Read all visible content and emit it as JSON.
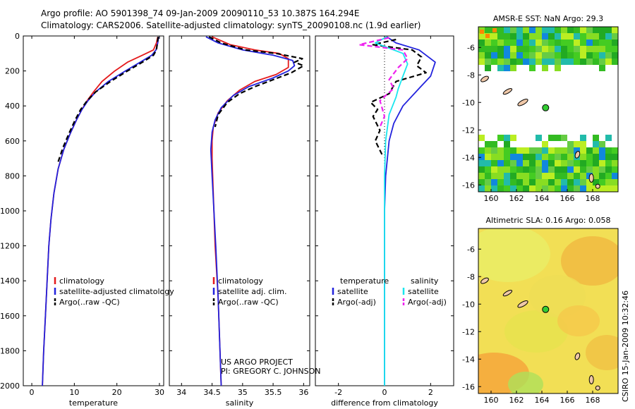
{
  "header": {
    "title_line1": "Argo profile: AO 5901398_74 09-Jan-2009 20090110_53 10.387S 164.294E",
    "title_line2": "Climatology: CARS2006. Satellite-adjusted climatology: synTS_20090108.nc (1.9d earlier)"
  },
  "sidebar_stamp": "CSIRO 15-Jan-2009 10:32:46",
  "project_note": {
    "line1": "US ARGO PROJECT",
    "line2": "PI: GREGORY C. JOHNSON"
  },
  "colors": {
    "climatology": "#e41a1c",
    "satellite": "#2222dd",
    "argo": "#000000",
    "sat_salinity": "#19e6ee",
    "argo_salinity_adj": "#ee22ee",
    "station": "#33cc33"
  },
  "chart_data": [
    {
      "type": "line",
      "xlabel": "temperature",
      "ylim": [
        2000,
        0
      ],
      "xlim": [
        -2,
        31
      ],
      "xticks": [
        0,
        10,
        20,
        30
      ],
      "yticks": [
        0,
        200,
        400,
        600,
        800,
        1000,
        1200,
        1400,
        1600,
        1800,
        2000
      ],
      "legend_location": "lower-left",
      "series": [
        {
          "name": "climatology",
          "color": "#e41a1c",
          "style": "solid",
          "points": [
            [
              29.6,
              5
            ],
            [
              29.3,
              40
            ],
            [
              28.6,
              80
            ],
            [
              26,
              110
            ],
            [
              22.5,
              150
            ],
            [
              19.5,
              200
            ],
            [
              16.5,
              260
            ],
            [
              14.5,
              320
            ],
            [
              13,
              370
            ],
            [
              11.8,
              420
            ],
            [
              10.5,
              480
            ],
            [
              9,
              560
            ],
            [
              7.5,
              650
            ],
            [
              6.2,
              760
            ],
            [
              5.2,
              900
            ],
            [
              4.5,
              1050
            ],
            [
              4,
              1200
            ],
            [
              3.6,
              1400
            ],
            [
              3.2,
              1600
            ],
            [
              2.8,
              1800
            ],
            [
              2.5,
              2000
            ]
          ]
        },
        {
          "name": "satellite-adjusted climatology",
          "color": "#2222dd",
          "style": "solid",
          "points": [
            [
              29.8,
              5
            ],
            [
              29.6,
              40
            ],
            [
              29.2,
              80
            ],
            [
              28.2,
              110
            ],
            [
              25.5,
              150
            ],
            [
              22,
              200
            ],
            [
              18,
              260
            ],
            [
              15,
              320
            ],
            [
              13.2,
              370
            ],
            [
              11.8,
              420
            ],
            [
              10.5,
              480
            ],
            [
              9,
              560
            ],
            [
              7.5,
              650
            ],
            [
              6.2,
              760
            ],
            [
              5.2,
              900
            ],
            [
              4.5,
              1050
            ],
            [
              4,
              1200
            ],
            [
              3.6,
              1400
            ],
            [
              3.2,
              1600
            ],
            [
              2.8,
              1800
            ],
            [
              2.5,
              2000
            ]
          ]
        },
        {
          "name": "Argo(..raw -QC)",
          "color": "#000000",
          "style": "dashed",
          "points": [
            [
              29.7,
              5
            ],
            [
              29.5,
              40
            ],
            [
              29.3,
              80
            ],
            [
              28.6,
              110
            ],
            [
              26,
              150
            ],
            [
              22.5,
              200
            ],
            [
              18.5,
              260
            ],
            [
              15,
              320
            ],
            [
              13,
              370
            ],
            [
              11.5,
              420
            ],
            [
              10.2,
              480
            ],
            [
              8.7,
              560
            ],
            [
              7.3,
              640
            ],
            [
              6.2,
              720
            ]
          ]
        }
      ]
    },
    {
      "type": "line",
      "xlabel": "salinity",
      "ylim": [
        2000,
        0
      ],
      "xlim": [
        33.8,
        36.1
      ],
      "xticks": [
        34,
        34.5,
        35,
        35.5,
        36
      ],
      "legend_location": "lower-left",
      "series": [
        {
          "name": "climatology",
          "color": "#e41a1c",
          "style": "solid",
          "points": [
            [
              34.5,
              5
            ],
            [
              34.8,
              50
            ],
            [
              35.2,
              80
            ],
            [
              35.6,
              100
            ],
            [
              35.75,
              130
            ],
            [
              35.75,
              180
            ],
            [
              35.55,
              220
            ],
            [
              35.2,
              260
            ],
            [
              34.95,
              310
            ],
            [
              34.75,
              370
            ],
            [
              34.6,
              440
            ],
            [
              34.52,
              520
            ],
            [
              34.5,
              600
            ],
            [
              34.5,
              700
            ],
            [
              34.52,
              900
            ],
            [
              34.55,
              1200
            ],
            [
              34.6,
              1500
            ],
            [
              34.63,
              1800
            ],
            [
              34.65,
              2000
            ]
          ]
        },
        {
          "name": "satellite adj. clim.",
          "color": "#2222dd",
          "style": "solid",
          "points": [
            [
              34.4,
              5
            ],
            [
              34.6,
              40
            ],
            [
              35,
              80
            ],
            [
              35.5,
              110
            ],
            [
              35.82,
              140
            ],
            [
              35.85,
              170
            ],
            [
              35.75,
              200
            ],
            [
              35.5,
              240
            ],
            [
              35.1,
              290
            ],
            [
              34.85,
              340
            ],
            [
              34.65,
              410
            ],
            [
              34.55,
              480
            ],
            [
              34.5,
              550
            ],
            [
              34.48,
              650
            ],
            [
              34.5,
              800
            ],
            [
              34.53,
              1000
            ],
            [
              34.56,
              1200
            ],
            [
              34.6,
              1500
            ],
            [
              34.63,
              1800
            ],
            [
              34.65,
              2000
            ]
          ]
        },
        {
          "name": "Argo(..raw -QC)",
          "color": "#000000",
          "style": "dashed",
          "points": [
            [
              34.45,
              5
            ],
            [
              34.65,
              40
            ],
            [
              35.05,
              80
            ],
            [
              35.55,
              100
            ],
            [
              35.98,
              130
            ],
            [
              35.85,
              150
            ],
            [
              36.0,
              170
            ],
            [
              35.8,
              210
            ],
            [
              35.5,
              250
            ],
            [
              35.2,
              290
            ],
            [
              34.95,
              330
            ],
            [
              34.75,
              380
            ],
            [
              34.6,
              450
            ],
            [
              34.55,
              520
            ]
          ]
        }
      ]
    },
    {
      "type": "line",
      "xlabel": "difference from climatology",
      "ylim": [
        2000,
        0
      ],
      "xlim": [
        -3,
        3
      ],
      "xticks": [
        -2,
        0,
        2
      ],
      "legend_location": "lower-center",
      "legend_groups": [
        "temperature",
        "salinity"
      ],
      "series": [
        {
          "name": "satellite",
          "group": "temperature",
          "color": "#2222dd",
          "style": "solid",
          "points": [
            [
              0.1,
              5
            ],
            [
              0.5,
              40
            ],
            [
              1.5,
              80
            ],
            [
              2.2,
              150
            ],
            [
              2.0,
              230
            ],
            [
              1.5,
              300
            ],
            [
              0.8,
              400
            ],
            [
              0.4,
              500
            ],
            [
              0.2,
              600
            ],
            [
              0.05,
              800
            ],
            [
              0,
              1000
            ],
            [
              0,
              2000
            ]
          ]
        },
        {
          "name": "Argo(-adj)",
          "group": "temperature",
          "color": "#000000",
          "style": "dashed",
          "points": [
            [
              0.5,
              20
            ],
            [
              -0.5,
              50
            ],
            [
              1.2,
              80
            ],
            [
              1.6,
              120
            ],
            [
              1.4,
              170
            ],
            [
              1.8,
              210
            ],
            [
              0.5,
              260
            ],
            [
              0.2,
              330
            ],
            [
              -0.6,
              380
            ],
            [
              -0.3,
              420
            ],
            [
              -0.5,
              460
            ],
            [
              -0.2,
              540
            ],
            [
              -0.4,
              600
            ],
            [
              -0.1,
              680
            ]
          ]
        },
        {
          "name": "satellite",
          "group": "salinity",
          "color": "#19e6ee",
          "style": "solid",
          "points": [
            [
              0.1,
              5
            ],
            [
              -0.4,
              40
            ],
            [
              0.8,
              100
            ],
            [
              1.0,
              160
            ],
            [
              0.8,
              230
            ],
            [
              0.6,
              300
            ],
            [
              0.5,
              350
            ],
            [
              0.2,
              450
            ],
            [
              0.05,
              600
            ],
            [
              0,
              800
            ],
            [
              0,
              1000
            ],
            [
              0,
              2000
            ]
          ]
        },
        {
          "name": "Argo(-adj)",
          "group": "salinity",
          "color": "#ee22ee",
          "style": "dashed",
          "points": [
            [
              0.2,
              10
            ],
            [
              -1.1,
              50
            ],
            [
              0.8,
              80
            ],
            [
              1.0,
              130
            ],
            [
              0.6,
              180
            ],
            [
              0.2,
              250
            ],
            [
              0.4,
              300
            ],
            [
              -0.2,
              370
            ],
            [
              0,
              460
            ],
            [
              -0.2,
              520
            ]
          ]
        }
      ]
    }
  ],
  "maps": [
    {
      "title": "AMSR-E SST: NaN Argo: 29.3",
      "xlim": [
        159,
        170
      ],
      "ylim": [
        -16.5,
        -4.5
      ],
      "xticks": [
        160,
        162,
        164,
        166,
        168
      ],
      "yticks": [
        -6,
        -8,
        -10,
        -12,
        -14,
        -16
      ],
      "station": {
        "lon": 164.294,
        "lat": -10.387
      }
    },
    {
      "title": "Altimetric SLA: 0.16 Argo: 0.058",
      "xlim": [
        159,
        170
      ],
      "ylim": [
        -16.5,
        -4.5
      ],
      "xticks": [
        160,
        162,
        164,
        166,
        168
      ],
      "yticks": [
        -6,
        -8,
        -10,
        -12,
        -14,
        -16
      ],
      "station": {
        "lon": 164.294,
        "lat": -10.387
      }
    }
  ]
}
